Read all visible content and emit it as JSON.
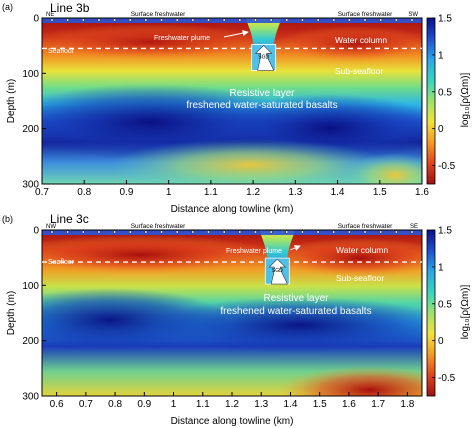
{
  "colorbar": {
    "label": "log₁₀[ρ(Ωm)]",
    "min": -0.75,
    "max": 1.5,
    "ticks": [
      "1.5",
      "1",
      "0.5",
      "0",
      "-0.5"
    ],
    "tick_values": [
      1.5,
      1,
      0.5,
      0,
      -0.5
    ],
    "colors": [
      "#0b0f8a",
      "#1f4fd0",
      "#2aa6e8",
      "#35d6c0",
      "#9be36a",
      "#f2e33a",
      "#f59a24",
      "#e0441c",
      "#a0100e"
    ]
  },
  "chart_data": [
    {
      "type": "heatmap",
      "panel_label": "(a)",
      "title": "Line 3b",
      "xlabel": "Distance along towline (km)",
      "ylabel": "Depth (m)",
      "xlim": [
        0.7,
        1.6
      ],
      "ylim": [
        300,
        0
      ],
      "xticks": [
        "0.7",
        "0.8",
        "0.9",
        "1",
        "1.1",
        "1.2",
        "1.3",
        "1.4",
        "1.5",
        "1.6"
      ],
      "xtick_values": [
        0.7,
        0.8,
        0.9,
        1.0,
        1.1,
        1.2,
        1.3,
        1.4,
        1.5,
        1.6
      ],
      "yticks": [
        "0",
        "100",
        "200",
        "300"
      ],
      "ytick_values": [
        0,
        100,
        200,
        300
      ],
      "left_end": "NE",
      "right_end": "SW",
      "seafloor_depth": 55,
      "plume_x": 1.225,
      "labels": {
        "surface_left": "Surface freshwater",
        "surface_right": "Surface freshwater",
        "plume": "Freshwater plume",
        "seafloor": "Seafloor",
        "water_column": "Water column",
        "sub_seafloor": "Sub-seafloor",
        "resistive_1": "Resistive layer",
        "resistive_2": "freshened water-saturated basalts",
        "arrow_text": "SGD"
      }
    },
    {
      "type": "heatmap",
      "panel_label": "(b)",
      "title": "Line 3c",
      "xlabel": "Distance along towline (km)",
      "ylabel": "Depth (m)",
      "xlim": [
        0.55,
        1.85
      ],
      "ylim": [
        300,
        0
      ],
      "xticks": [
        "0.6",
        "0.7",
        "0.8",
        "0.9",
        "1",
        "1.1",
        "1.2",
        "1.3",
        "1.4",
        "1.5",
        "1.6",
        "1.7",
        "1.8"
      ],
      "xtick_values": [
        0.6,
        0.7,
        0.8,
        0.9,
        1.0,
        1.1,
        1.2,
        1.3,
        1.4,
        1.5,
        1.6,
        1.7,
        1.8
      ],
      "yticks": [
        "0",
        "100",
        "200",
        "300"
      ],
      "ytick_values": [
        0,
        100,
        200,
        300
      ],
      "left_end": "NW",
      "right_end": "SE",
      "seafloor_depth": 58,
      "plume_x": 1.355,
      "labels": {
        "surface_left": "Surface freshwater",
        "surface_right": "Surface freshwater",
        "plume": "Freshwater plume",
        "seafloor": "Seafloor",
        "water_column": "Water column",
        "sub_seafloor": "Sub-seafloor",
        "resistive_1": "Resistive layer",
        "resistive_2": "freshened water-saturated basalts",
        "arrow_text": "SGD"
      }
    }
  ]
}
